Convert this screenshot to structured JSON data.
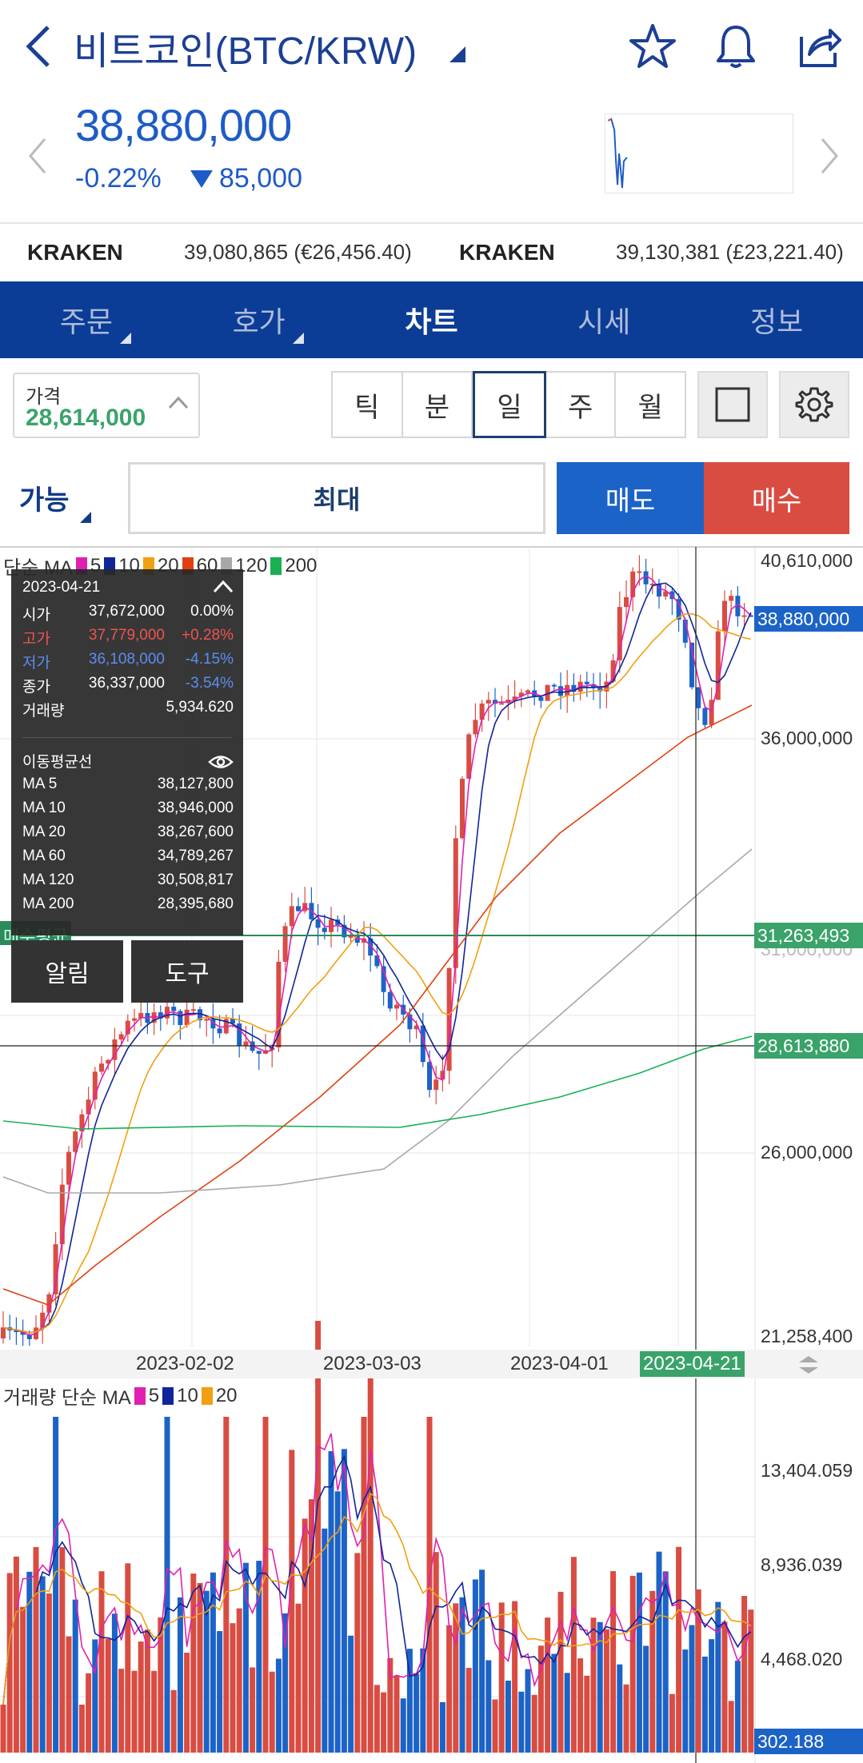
{
  "header": {
    "title": "비트코인(BTC/KRW)",
    "price": "38,880,000",
    "change_pct": "-0.22%",
    "change_amt": "85,000",
    "icons": [
      "back-icon",
      "star-icon",
      "bell-icon",
      "share-icon"
    ]
  },
  "exchanges": [
    {
      "name": "KRAKEN",
      "value": "39,080,865 (€26,456.40)"
    },
    {
      "name": "KRAKEN",
      "value": "39,130,381 (£23,221.40)"
    }
  ],
  "tabs": [
    {
      "label": "주문",
      "active": false
    },
    {
      "label": "호가",
      "active": false
    },
    {
      "label": "차트",
      "active": true
    },
    {
      "label": "시세",
      "active": false
    },
    {
      "label": "정보",
      "active": false
    }
  ],
  "toolbar": {
    "price_label": "가격",
    "price_value": "28,614,000",
    "periods": [
      {
        "label": "틱",
        "active": false
      },
      {
        "label": "분",
        "active": false
      },
      {
        "label": "일",
        "active": true
      },
      {
        "label": "주",
        "active": false
      },
      {
        "label": "월",
        "active": false
      }
    ]
  },
  "order": {
    "available": "가능",
    "max": "최대",
    "sell": "매도",
    "buy": "매수"
  },
  "chart_legend": {
    "prefix": "단순 MA",
    "items": [
      {
        "label": "5",
        "color": "#e020b0"
      },
      {
        "label": "10",
        "color": "#10259a"
      },
      {
        "label": "20",
        "color": "#f0a010"
      },
      {
        "label": "60",
        "color": "#e04010"
      },
      {
        "label": "120",
        "color": "#a8a8a8"
      },
      {
        "label": "200",
        "color": "#18b050"
      }
    ]
  },
  "tooltip": {
    "date": "2023-04-21",
    "ohlc": [
      {
        "label": "시가",
        "value": "37,672,000",
        "pct": "0.00%",
        "color": "#ffffff"
      },
      {
        "label": "고가",
        "value": "37,779,000",
        "pct": "+0.28%",
        "color": "#ef5350"
      },
      {
        "label": "저가",
        "value": "36,108,000",
        "pct": "-4.15%",
        "color": "#5b8def"
      },
      {
        "label": "종가",
        "value": "36,337,000",
        "pct": "-3.54%",
        "color": "#ffffff"
      }
    ],
    "volume_label": "거래량",
    "volume_value": "5,934.620",
    "ma_title": "이동평균선",
    "ma": [
      {
        "label": "MA 5",
        "value": "38,127,800"
      },
      {
        "label": "MA 10",
        "value": "38,946,000"
      },
      {
        "label": "MA 20",
        "value": "38,267,600"
      },
      {
        "label": "MA 60",
        "value": "34,789,267"
      },
      {
        "label": "MA 120",
        "value": "30,508,817"
      },
      {
        "label": "MA 200",
        "value": "28,395,680"
      }
    ]
  },
  "tools": {
    "alert": "알림",
    "tool": "도구"
  },
  "avg_label": "매수평균",
  "price_axis": {
    "labels": [
      "40,610,000",
      "36,000,000",
      "31,000,000",
      "26,000,000",
      "21,258,400"
    ],
    "current": "38,880,000",
    "avg": "31,263,493",
    "cursor": "28,613,880"
  },
  "dates": {
    "labels": [
      "2023-02-02",
      "2023-03-03",
      "2023-04-01"
    ],
    "cursor": "2023-04-21"
  },
  "volume_legend": {
    "prefix": "거래량 단순 MA",
    "items": [
      {
        "label": "5",
        "color": "#e020b0"
      },
      {
        "label": "10",
        "color": "#10259a"
      },
      {
        "label": "20",
        "color": "#f0a010"
      }
    ]
  },
  "volume_axis": {
    "labels": [
      "13,404.059",
      "8,936.039",
      "4,468.020"
    ],
    "current": "302.188"
  },
  "colors": {
    "up": "#d94c42",
    "down": "#1c63c7",
    "brand": "#0b3d96"
  }
}
